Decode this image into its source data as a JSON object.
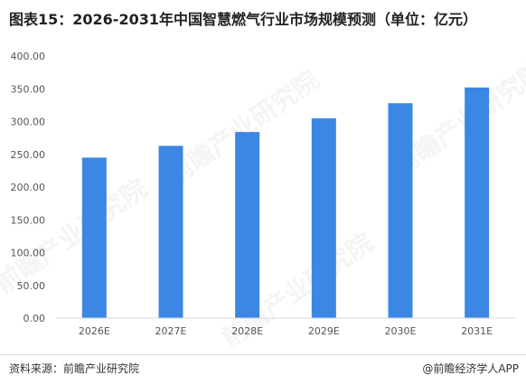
{
  "title": "图表15：2026-2031年中国智慧燃气行业市场规模预测（单位：亿元）",
  "source": "资料来源：前瞻产业研究院",
  "credit": "@前瞻经济学人APP",
  "watermark": "前瞻产业研究院",
  "chart_data": {
    "type": "bar",
    "title": "图表15：2026-2031年中国智慧燃气行业市场规模预测（单位：亿元）",
    "categories": [
      "2026E",
      "2027E",
      "2028E",
      "2029E",
      "2030E",
      "2031E"
    ],
    "values": [
      245,
      263,
      284,
      305,
      328,
      352
    ],
    "ylim": [
      0,
      400
    ],
    "yticks": [
      "0.00",
      "50.00",
      "100.00",
      "150.00",
      "200.00",
      "250.00",
      "300.00",
      "350.00",
      "400.00"
    ],
    "xlabel": "",
    "ylabel": "",
    "grid": false,
    "bar_color": "#3c87e4"
  }
}
